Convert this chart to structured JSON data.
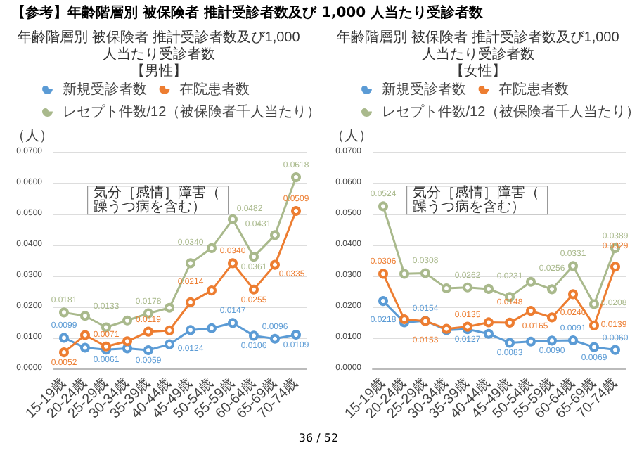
{
  "chart_data": [
    {
      "type": "line",
      "title": "年齢階層別 被保険者 推計受診者数及び1,000人当たり受診者数",
      "subtitle": "【男性】",
      "ylabel": "（人）",
      "annotations": [
        "【参考】年齢階層別 被保険者 推計受診者数及び 1,000 人当たり受診者数",
        "気分［感情］障害（躁うつ病を含む）"
      ],
      "categories": [
        "15-19歳",
        "20-24歳",
        "25-29歳",
        "30-34歳",
        "35-39歳",
        "40-44歳",
        "45-49歳",
        "50-54歳",
        "55-59歳",
        "60-64歳",
        "65-69歳",
        "70-74歳"
      ],
      "series": [
        {
          "name": "新規受診者数",
          "color": "#5b9bd5",
          "values": [
            0.0099,
            0.0067,
            0.0061,
            0.0065,
            0.0059,
            0.0078,
            0.0124,
            0.013,
            0.0147,
            0.0106,
            0.0096,
            0.0109
          ],
          "value_labels": [
            "0.0099",
            null,
            "0.0061",
            null,
            "0.0059",
            null,
            "0.0124",
            null,
            "0.0147",
            "0.0106",
            "0.0096",
            "0.0109"
          ]
        },
        {
          "name": "在院患者数",
          "color": "#ed7d31",
          "values": [
            0.0052,
            0.0108,
            0.0071,
            0.0088,
            0.0119,
            0.0123,
            0.0214,
            0.0252,
            0.034,
            0.0255,
            0.0335,
            0.0509
          ],
          "value_labels": [
            "0.0052",
            null,
            "0.0071",
            null,
            "0.0119",
            null,
            "0.0214",
            null,
            "0.0340",
            "0.0255",
            "0.0335",
            "0.0509"
          ]
        },
        {
          "name": "レセプト件数/12（被保険者千人当たり）",
          "color": "#a9b98c",
          "values": [
            0.0181,
            0.017,
            0.0133,
            0.0155,
            0.0178,
            0.0196,
            0.034,
            0.0389,
            0.0482,
            0.0361,
            0.0431,
            0.0618
          ],
          "value_labels": [
            "0.0181",
            null,
            "0.0133",
            null,
            "0.0178",
            null,
            "0.0340",
            null,
            "0.0482",
            "0.0361",
            "0.0431",
            "0.0618"
          ]
        }
      ],
      "ylim": [
        0,
        0.07
      ],
      "yticks": [
        {
          "value": 0,
          "label": "0.0000"
        },
        {
          "value": 0.01,
          "label": "0.0100"
        },
        {
          "value": 0.02,
          "label": "0.0200"
        },
        {
          "value": 0.03,
          "label": "0.0300"
        },
        {
          "value": 0.04,
          "label": "0.0400"
        },
        {
          "value": 0.05,
          "label": "0.0500"
        },
        {
          "value": 0.06,
          "label": "0.0600"
        },
        {
          "value": 0.07,
          "label": "0.0700"
        }
      ],
      "grid": "y",
      "legend": "top",
      "marker": "circle",
      "line_style": "solid"
    },
    {
      "type": "line",
      "title": "年齢階層別 被保険者 推計受診者数及び1,000人当たり受診者数",
      "subtitle": "【女性】",
      "ylabel": "（人）",
      "annotations": [
        "気分［感情］障害（躁うつ病を含む）",
        "36 / 52"
      ],
      "categories": [
        "15-19歳",
        "20-24歳",
        "25-29歳",
        "30-34歳",
        "35-39歳",
        "40-44歳",
        "45-49歳",
        "50-54歳",
        "55-59歳",
        "60-64歳",
        "65-69歳",
        "70-74歳"
      ],
      "series": [
        {
          "name": "新規受診者数",
          "color": "#5b9bd5",
          "values": [
            0.0218,
            0.0149,
            0.0154,
            0.0124,
            0.0127,
            0.0112,
            0.0083,
            0.0087,
            0.009,
            0.0091,
            0.0069,
            0.006
          ],
          "value_labels": [
            "0.0218",
            null,
            "0.0154",
            null,
            "0.0127",
            null,
            "0.0083",
            null,
            "0.0090",
            "0.0091",
            "0.0069",
            "0.0060"
          ]
        },
        {
          "name": "在院患者数",
          "color": "#ed7d31",
          "values": [
            0.0306,
            0.0159,
            0.0153,
            0.0128,
            0.0135,
            0.0149,
            0.0148,
            0.0186,
            0.0165,
            0.024,
            0.0139,
            0.0329
          ],
          "value_labels": [
            "0.0306",
            null,
            "0.0153",
            null,
            "0.0135",
            null,
            "0.0148",
            null,
            "0.0165",
            "0.0240",
            "0.0139",
            "0.0329"
          ]
        },
        {
          "name": "レセプト件数/12（被保険者千人当たり）",
          "color": "#a9b98c",
          "values": [
            0.0524,
            0.0306,
            0.0308,
            0.0259,
            0.0262,
            0.0257,
            0.0231,
            0.028,
            0.0256,
            0.0331,
            0.0208,
            0.0389
          ],
          "value_labels": [
            "0.0524",
            null,
            "0.0308",
            null,
            "0.0262",
            null,
            "0.0231",
            null,
            "0.0256",
            "0.0331",
            "0.0208",
            "0.0389"
          ]
        }
      ],
      "ylim": [
        0,
        0.07
      ],
      "yticks": [
        {
          "value": 0,
          "label": "0.0000"
        },
        {
          "value": 0.01,
          "label": "0.0100"
        },
        {
          "value": 0.02,
          "label": "0.0200"
        },
        {
          "value": 0.03,
          "label": "0.0300"
        },
        {
          "value": 0.04,
          "label": "0.0400"
        },
        {
          "value": 0.05,
          "label": "0.0500"
        },
        {
          "value": 0.06,
          "label": "0.0600"
        },
        {
          "value": 0.07,
          "label": "0.0700"
        }
      ],
      "grid": "y",
      "legend": "top",
      "marker": "circle",
      "line_style": "solid"
    }
  ]
}
